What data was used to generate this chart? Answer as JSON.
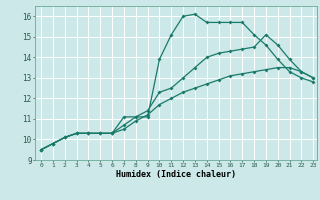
{
  "xlabel": "Humidex (Indice chaleur)",
  "bg_color": "#cce8e8",
  "grid_color": "#ffffff",
  "line_color": "#1a7a6a",
  "xlim": [
    -0.5,
    23.3
  ],
  "ylim": [
    9.0,
    16.5
  ],
  "xticks": [
    0,
    1,
    2,
    3,
    4,
    5,
    6,
    7,
    8,
    9,
    10,
    11,
    12,
    13,
    14,
    15,
    16,
    17,
    18,
    19,
    20,
    21,
    22,
    23
  ],
  "yticks": [
    9,
    10,
    11,
    12,
    13,
    14,
    15,
    16
  ],
  "line1_x": [
    0,
    1,
    2,
    3,
    4,
    5,
    6,
    7,
    8,
    9,
    10,
    11,
    12,
    13,
    14,
    15,
    16,
    17,
    18,
    19,
    20,
    21,
    22,
    23
  ],
  "line1_y": [
    9.5,
    9.8,
    10.1,
    10.3,
    10.3,
    10.3,
    10.3,
    11.1,
    11.1,
    11.1,
    13.9,
    15.1,
    16.0,
    16.1,
    15.7,
    15.7,
    15.7,
    15.7,
    15.1,
    14.6,
    13.9,
    13.3,
    13.0,
    12.8
  ],
  "line2_x": [
    0,
    1,
    2,
    3,
    4,
    5,
    6,
    7,
    8,
    9,
    10,
    11,
    12,
    13,
    14,
    15,
    16,
    17,
    18,
    19,
    20,
    21,
    22,
    23
  ],
  "line2_y": [
    9.5,
    9.8,
    10.1,
    10.3,
    10.3,
    10.3,
    10.3,
    10.7,
    11.1,
    11.4,
    12.3,
    12.5,
    13.0,
    13.5,
    14.0,
    14.2,
    14.3,
    14.4,
    14.5,
    15.1,
    14.6,
    13.9,
    13.3,
    13.0
  ],
  "line3_x": [
    0,
    1,
    2,
    3,
    4,
    5,
    6,
    7,
    8,
    9,
    10,
    11,
    12,
    13,
    14,
    15,
    16,
    17,
    18,
    19,
    20,
    21,
    22,
    23
  ],
  "line3_y": [
    9.5,
    9.8,
    10.1,
    10.3,
    10.3,
    10.3,
    10.3,
    10.5,
    10.9,
    11.2,
    11.7,
    12.0,
    12.3,
    12.5,
    12.7,
    12.9,
    13.1,
    13.2,
    13.3,
    13.4,
    13.5,
    13.5,
    13.3,
    13.0
  ]
}
